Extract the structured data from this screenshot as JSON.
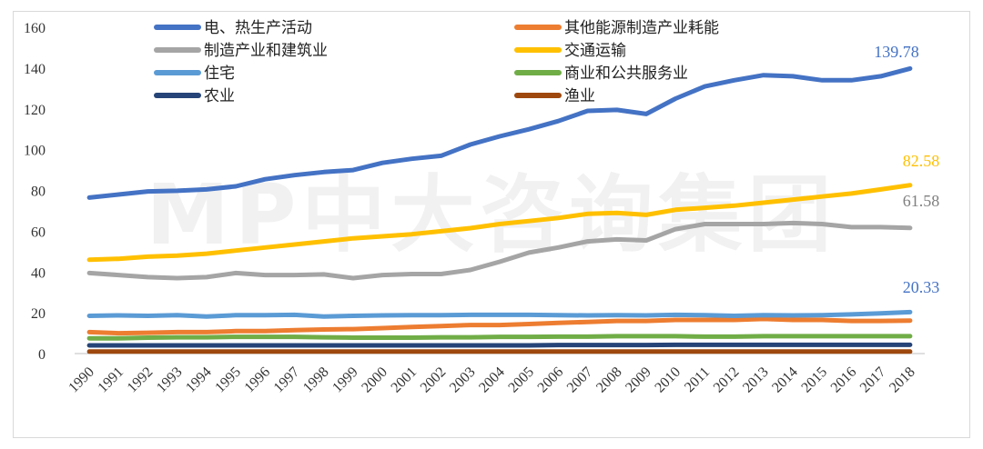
{
  "watermark": "MP中大咨询集团",
  "chart_data": {
    "type": "line",
    "title": "",
    "xlabel": "",
    "ylabel": "",
    "ylim": [
      0,
      160
    ],
    "yticks": [
      0,
      20,
      40,
      60,
      80,
      100,
      120,
      140,
      160
    ],
    "grid": false,
    "legend_position": "top",
    "x": [
      "1990",
      "1991",
      "1992",
      "1993",
      "1994",
      "1995",
      "1996",
      "1997",
      "1998",
      "1999",
      "2000",
      "2001",
      "2002",
      "2003",
      "2004",
      "2005",
      "2006",
      "2007",
      "2008",
      "2009",
      "2010",
      "2011",
      "2012",
      "2013",
      "2014",
      "2015",
      "2016",
      "2017",
      "2018"
    ],
    "series": [
      {
        "name": "电、热生产活动",
        "color": "#4472c4",
        "values": [
          76.5,
          78,
          79.5,
          79.8,
          80.5,
          82,
          85.5,
          87.5,
          89,
          90,
          93.5,
          95.5,
          97,
          102.5,
          106.5,
          110,
          114,
          119,
          119.5,
          117.5,
          125,
          131,
          134,
          136.5,
          136,
          134,
          134,
          136,
          139.78
        ]
      },
      {
        "name": "其他能源制造产业耗能",
        "color": "#ed7d31",
        "values": [
          10.5,
          10,
          10.2,
          10.5,
          10.5,
          11,
          11,
          11.5,
          11.8,
          12,
          12.5,
          13,
          13.5,
          14,
          14,
          14.5,
          15,
          15.5,
          16,
          16,
          16.5,
          16.5,
          16.5,
          17,
          16.5,
          16.5,
          16,
          16,
          16.2
        ]
      },
      {
        "name": "制造产业和建筑业",
        "color": "#a5a5a5",
        "values": [
          39.5,
          38.5,
          37.5,
          37,
          37.5,
          39.5,
          38.5,
          38.5,
          38.8,
          37,
          38.5,
          39,
          39,
          41,
          45,
          49.5,
          52,
          55,
          56,
          55.5,
          61,
          63.5,
          63.5,
          63.5,
          64,
          63.5,
          62,
          62,
          61.58
        ]
      },
      {
        "name": "交通运输",
        "color": "#ffc000",
        "values": [
          46,
          46.5,
          47.5,
          48,
          49,
          50.5,
          52,
          53.5,
          55,
          56.5,
          57.5,
          58.5,
          60,
          61.5,
          63.5,
          65,
          66.5,
          68.5,
          69,
          68,
          70.5,
          71.5,
          72.5,
          74,
          75.5,
          77,
          78.5,
          80.5,
          82.58
        ]
      },
      {
        "name": "住宅",
        "color": "#5b9bd5",
        "values": [
          18.5,
          18.7,
          18.5,
          18.8,
          18.2,
          18.8,
          18.8,
          19,
          18.2,
          18.5,
          18.7,
          18.8,
          18.8,
          19,
          19,
          19,
          18.8,
          18.7,
          18.8,
          18.7,
          19,
          18.8,
          18.5,
          18.8,
          18.7,
          18.8,
          19.2,
          19.7,
          20.33
        ]
      },
      {
        "name": "商业和公共服务业",
        "color": "#70ad47",
        "values": [
          7.5,
          7.5,
          7.8,
          8,
          8,
          8.2,
          8.2,
          8.2,
          8,
          7.8,
          7.8,
          7.8,
          8,
          8,
          8.2,
          8.2,
          8.3,
          8.3,
          8.5,
          8.5,
          8.5,
          8.3,
          8.3,
          8.5,
          8.5,
          8.5,
          8.5,
          8.5,
          8.5
        ]
      },
      {
        "name": "农业",
        "color": "#264478",
        "values": [
          4,
          4,
          4,
          4,
          4,
          4,
          4,
          4,
          4,
          4,
          4,
          4,
          4,
          4,
          4,
          4,
          4.2,
          4.2,
          4.2,
          4.2,
          4.3,
          4.3,
          4.3,
          4.3,
          4.3,
          4.3,
          4.3,
          4.3,
          4.3
        ]
      },
      {
        "name": "渔业",
        "color": "#9e480e",
        "values": [
          1,
          1,
          1,
          1,
          1,
          1,
          1,
          1,
          1,
          1,
          1,
          1,
          1,
          1,
          1,
          1,
          1,
          1,
          1,
          1,
          1,
          1,
          1,
          1,
          1,
          1,
          1,
          1,
          1
        ]
      }
    ],
    "data_labels": [
      {
        "text": "139.78",
        "series": 0,
        "color": "#4472c4"
      },
      {
        "text": "82.58",
        "series": 3,
        "color": "#ffc000"
      },
      {
        "text": "61.58",
        "series": 2,
        "color": "#7f7f7f"
      },
      {
        "text": "20.33",
        "series": 4,
        "color": "#4472c4"
      }
    ]
  }
}
